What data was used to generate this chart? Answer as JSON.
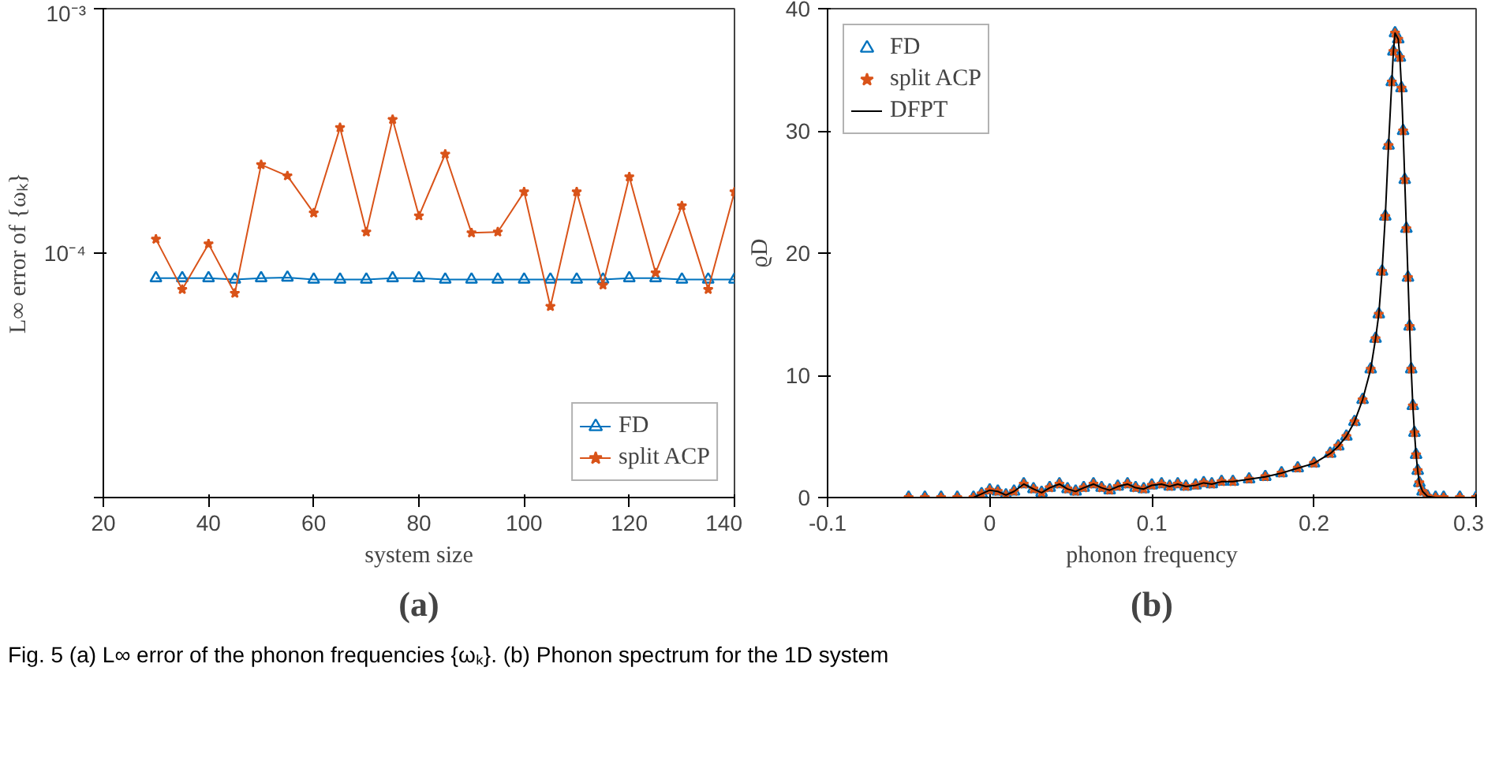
{
  "chart_data": [
    {
      "type": "line",
      "title": "(a)",
      "xlabel": "system size",
      "ylabel": "L∞ error of {ωₖ}",
      "log": "y",
      "grid": false,
      "legend": "bottom right",
      "xlim": [
        20,
        140
      ],
      "xticks": [
        20,
        40,
        60,
        80,
        100,
        120,
        140
      ],
      "ylim": [
        1e-05,
        0.001
      ],
      "yticks": [
        {
          "value": 1e-05,
          "label": null
        },
        {
          "value": 0.0001,
          "label": "10⁻⁴"
        },
        {
          "value": 0.001,
          "label": "10⁻³"
        }
      ],
      "x": [
        30,
        35,
        40,
        45,
        50,
        55,
        60,
        65,
        70,
        75,
        80,
        85,
        90,
        95,
        100,
        105,
        110,
        115,
        120,
        125,
        130,
        135,
        140
      ],
      "series": [
        {
          "name": "FD",
          "color": "#0072bd",
          "marker": "triangle",
          "values": [
            7.9e-05,
            7.9e-05,
            7.9e-05,
            7.8e-05,
            7.9e-05,
            7.95e-05,
            7.8e-05,
            7.8e-05,
            7.8e-05,
            7.9e-05,
            7.9e-05,
            7.8e-05,
            7.8e-05,
            7.8e-05,
            7.8e-05,
            7.8e-05,
            7.8e-05,
            7.8e-05,
            7.9e-05,
            7.9e-05,
            7.8e-05,
            7.8e-05,
            7.8e-05
          ]
        },
        {
          "name": "split ACP",
          "color": "#d95319",
          "marker": "star",
          "values": [
            0.000114,
            7.1e-05,
            0.000109,
            6.85e-05,
            0.00023,
            0.000207,
            0.000146,
            0.000326,
            0.000122,
            0.000352,
            0.000142,
            0.000254,
            0.000121,
            0.000122,
            0.000178,
            6.05e-05,
            0.000178,
            7.4e-05,
            0.000205,
            8.3e-05,
            0.000156,
            7.1e-05,
            0.000178
          ]
        }
      ],
      "annotations": [
        "Fig. 5 (a) L∞ error of the phonon frequencies {ωₖ}. (b) Phonon spectrum for the 1D system"
      ]
    },
    {
      "type": "line",
      "title": "(b)",
      "xlabel": "phonon frequency",
      "ylabel": "ϱD",
      "grid": false,
      "legend": "top left",
      "xlim": [
        -0.1,
        0.3
      ],
      "xticks": [
        -0.1,
        0,
        0.1,
        0.2,
        0.3
      ],
      "ylim": [
        0,
        40
      ],
      "yticks": [
        0,
        10,
        20,
        30,
        40
      ],
      "x": [
        -0.05,
        -0.04,
        -0.03,
        -0.02,
        -0.01,
        -0.005,
        0,
        0.005,
        0.01,
        0.015,
        0.021,
        0.027,
        0.032,
        0.037,
        0.043,
        0.048,
        0.053,
        0.058,
        0.064,
        0.069,
        0.074,
        0.079,
        0.085,
        0.09,
        0.095,
        0.1,
        0.106,
        0.111,
        0.116,
        0.121,
        0.127,
        0.132,
        0.137,
        0.143,
        0.15,
        0.16,
        0.17,
        0.18,
        0.19,
        0.2,
        0.21,
        0.215,
        0.22,
        0.225,
        0.23,
        0.235,
        0.238,
        0.24,
        0.242,
        0.244,
        0.246,
        0.248,
        0.249,
        0.25,
        0.252,
        0.253,
        0.254,
        0.255,
        0.256,
        0.257,
        0.258,
        0.259,
        0.26,
        0.261,
        0.262,
        0.263,
        0.264,
        0.265,
        0.267,
        0.27,
        0.275,
        0.28,
        0.29,
        0.3
      ],
      "series": [
        {
          "name": "FD",
          "type": "scatter",
          "color": "#0072bd",
          "marker": "triangle",
          "values": [
            0,
            0,
            0,
            0,
            0,
            0.3,
            0.6,
            0.5,
            0.2,
            0.5,
            1.1,
            0.7,
            0.4,
            0.8,
            1.1,
            0.7,
            0.5,
            0.8,
            1.1,
            0.8,
            0.6,
            0.9,
            1.1,
            0.8,
            0.7,
            1.0,
            1.1,
            0.9,
            1.1,
            0.9,
            1.0,
            1.2,
            1.1,
            1.3,
            1.3,
            1.5,
            1.7,
            2.0,
            2.4,
            2.8,
            3.6,
            4.2,
            5.0,
            6.2,
            8.0,
            10.5,
            13,
            15,
            18.5,
            23,
            28.8,
            34,
            36.5,
            38,
            37.5,
            36,
            33.5,
            30,
            26,
            22,
            18,
            14,
            10.5,
            7.5,
            5.3,
            3.5,
            2.2,
            1.2,
            0.5,
            0.1,
            0,
            0,
            0,
            0
          ]
        },
        {
          "name": "split ACP",
          "type": "scatter",
          "color": "#d95319",
          "marker": "star",
          "values": [
            0,
            0,
            0,
            0,
            0,
            0.3,
            0.6,
            0.5,
            0.2,
            0.5,
            1.1,
            0.7,
            0.4,
            0.8,
            1.1,
            0.7,
            0.5,
            0.8,
            1.1,
            0.8,
            0.6,
            0.9,
            1.1,
            0.8,
            0.7,
            1.0,
            1.1,
            0.9,
            1.1,
            0.9,
            1.0,
            1.2,
            1.1,
            1.3,
            1.3,
            1.5,
            1.7,
            2.0,
            2.4,
            2.8,
            3.6,
            4.2,
            5.0,
            6.2,
            8.0,
            10.5,
            13,
            15,
            18.5,
            23,
            28.8,
            34,
            36.5,
            38,
            37.5,
            36,
            33.5,
            30,
            26,
            22,
            18,
            14,
            10.5,
            7.5,
            5.3,
            3.5,
            2.2,
            1.2,
            0.5,
            0.1,
            0,
            0,
            0,
            0
          ]
        },
        {
          "name": "DFPT",
          "type": "line",
          "color": "#000000",
          "values": [
            0,
            0,
            0,
            0,
            0,
            0.3,
            0.6,
            0.5,
            0.2,
            0.5,
            1.1,
            0.7,
            0.4,
            0.8,
            1.1,
            0.7,
            0.5,
            0.8,
            1.1,
            0.8,
            0.6,
            0.9,
            1.1,
            0.8,
            0.7,
            1.0,
            1.1,
            0.9,
            1.1,
            0.9,
            1.0,
            1.2,
            1.1,
            1.3,
            1.3,
            1.5,
            1.7,
            2.0,
            2.4,
            2.8,
            3.6,
            4.2,
            5.0,
            6.2,
            8.0,
            10.5,
            13,
            15,
            18.5,
            23,
            28.8,
            34,
            36.5,
            38,
            37.5,
            36,
            33.5,
            30,
            26,
            22,
            18,
            14,
            10.5,
            7.5,
            5.3,
            3.5,
            2.2,
            1.2,
            0.5,
            0.1,
            0,
            0,
            0,
            0
          ]
        }
      ]
    }
  ]
}
